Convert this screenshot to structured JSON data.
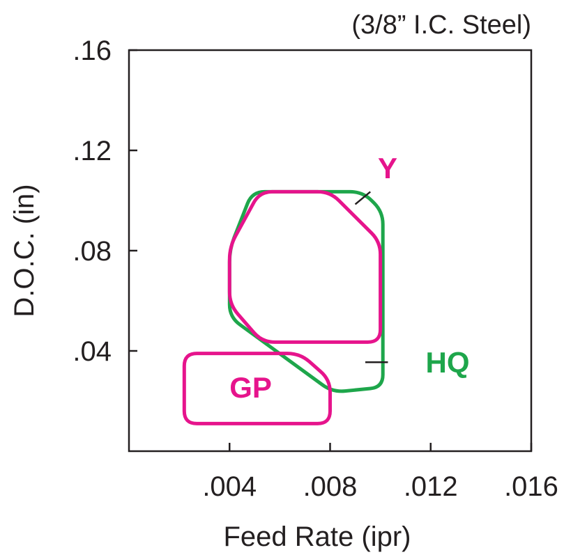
{
  "chart_data": {
    "type": "area",
    "title": "(3/8” I.C. Steel)",
    "xlabel": "Feed Rate (ipr)",
    "ylabel": "D.O.C. (in)",
    "xlim": [
      0,
      0.016
    ],
    "ylim": [
      0,
      0.16
    ],
    "x_ticks": [
      0.004,
      0.008,
      0.012,
      0.016
    ],
    "x_tick_labels": [
      ".004",
      ".008",
      ".012",
      ".016"
    ],
    "y_ticks": [
      0.04,
      0.08,
      0.12,
      0.16
    ],
    "y_tick_labels": [
      ".04",
      ".08",
      ".12",
      ".16"
    ],
    "grid": false,
    "colors": {
      "magenta": "#e6148c",
      "green": "#1ea64b",
      "axis": "#231f20"
    },
    "series": [
      {
        "name": "HQ",
        "color": "#1ea64b",
        "points": [
          [
            0.004,
            0.0805
          ],
          [
            0.0049,
            0.1035
          ],
          [
            0.0093,
            0.1035
          ],
          [
            0.0101,
            0.0955
          ],
          [
            0.0101,
            0.0255
          ],
          [
            0.0081,
            0.0235
          ],
          [
            0.004,
            0.0535
          ]
        ]
      },
      {
        "name": "Y",
        "color": "#e6148c",
        "points": [
          [
            0.004,
            0.0815
          ],
          [
            0.0052,
            0.1035
          ],
          [
            0.008,
            0.1035
          ],
          [
            0.01,
            0.0835
          ],
          [
            0.01,
            0.0435
          ],
          [
            0.0053,
            0.0435
          ],
          [
            0.004,
            0.0585
          ]
        ]
      },
      {
        "name": "GP",
        "color": "#e6148c",
        "points": [
          [
            0.0022,
            0.039
          ],
          [
            0.0068,
            0.039
          ],
          [
            0.008,
            0.0285
          ],
          [
            0.008,
            0.011
          ],
          [
            0.0022,
            0.011
          ]
        ]
      }
    ],
    "annotations": [
      {
        "text": "Y",
        "series": "Y",
        "color": "#e6148c",
        "x": 0.0099,
        "y": 0.113,
        "leader": [
          [
            0.009,
            0.0985
          ],
          [
            0.0096,
            0.1035
          ]
        ]
      },
      {
        "text": "HQ",
        "series": "HQ",
        "color": "#1ea64b",
        "x": 0.0118,
        "y": 0.0355,
        "leader": [
          [
            0.0094,
            0.0355
          ],
          [
            0.0103,
            0.0355
          ]
        ]
      },
      {
        "text": "GP",
        "series": "GP",
        "color": "#e6148c",
        "x": 0.004,
        "y": 0.0255
      }
    ]
  }
}
